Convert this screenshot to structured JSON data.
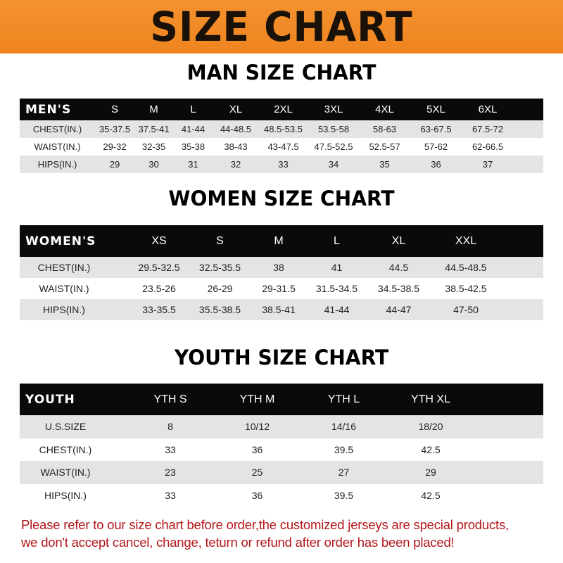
{
  "banner": {
    "title": "SIZE CHART",
    "color": "#f08a24"
  },
  "men": {
    "title": "MAN SIZE CHART",
    "header": "MEN'S",
    "sizes": [
      "S",
      "M",
      "L",
      "XL",
      "2XL",
      "3XL",
      "4XL",
      "5XL",
      "6XL"
    ],
    "rows": [
      {
        "label": "CHEST(IN.)",
        "values": [
          "35-37.5",
          "37.5-41",
          "41-44",
          "44-48.5",
          "48.5-53.5",
          "53.5-58",
          "58-63",
          "63-67.5",
          "67.5-72"
        ]
      },
      {
        "label": "WAIST(IN.)",
        "values": [
          "29-32",
          "32-35",
          "35-38",
          "38-43",
          "43-47.5",
          "47.5-52.5",
          "52.5-57",
          "57-62",
          "62-66.5"
        ]
      },
      {
        "label": "HIPS(IN.)",
        "values": [
          "29",
          "30",
          "31",
          "32",
          "33",
          "34",
          "35",
          "36",
          "37"
        ]
      }
    ]
  },
  "women": {
    "title": "WOMEN SIZE CHART",
    "header": "WOMEN'S",
    "sizes": [
      "XS",
      "S",
      "M",
      "L",
      "XL",
      "XXL"
    ],
    "rows": [
      {
        "label": "CHEST(IN.)",
        "values": [
          "29.5-32.5",
          "32.5-35.5",
          "38",
          "41",
          "44.5",
          "44.5-48.5"
        ]
      },
      {
        "label": "WAIST(IN.)",
        "values": [
          "23.5-26",
          "26-29",
          "29-31.5",
          "31.5-34.5",
          "34.5-38.5",
          "38.5-42.5"
        ]
      },
      {
        "label": "HIPS(IN.)",
        "values": [
          "33-35.5",
          "35.5-38.5",
          "38.5-41",
          "41-44",
          "44-47",
          "47-50"
        ]
      }
    ]
  },
  "youth": {
    "title": "YOUTH SIZE CHART",
    "header": "YOUTH",
    "sizes": [
      "YTH S",
      "YTH M",
      "YTH L",
      "YTH XL"
    ],
    "rows": [
      {
        "label": "U.S.SIZE",
        "values": [
          "8",
          "10/12",
          "14/16",
          "18/20"
        ]
      },
      {
        "label": "CHEST(IN.)",
        "values": [
          "33",
          "36",
          "39.5",
          "42.5"
        ]
      },
      {
        "label": "WAIST(IN.)",
        "values": [
          "23",
          "25",
          "27",
          "29"
        ]
      },
      {
        "label": "HIPS(IN.)",
        "values": [
          "33",
          "36",
          "39.5",
          "42.5"
        ]
      }
    ]
  },
  "note": {
    "line1": "Please refer to our size chart before order,the customized jerseys are special products,",
    "line2": "we don't accept cancel, change, teturn or refund after order has been placed!",
    "color": "#b3161b"
  }
}
